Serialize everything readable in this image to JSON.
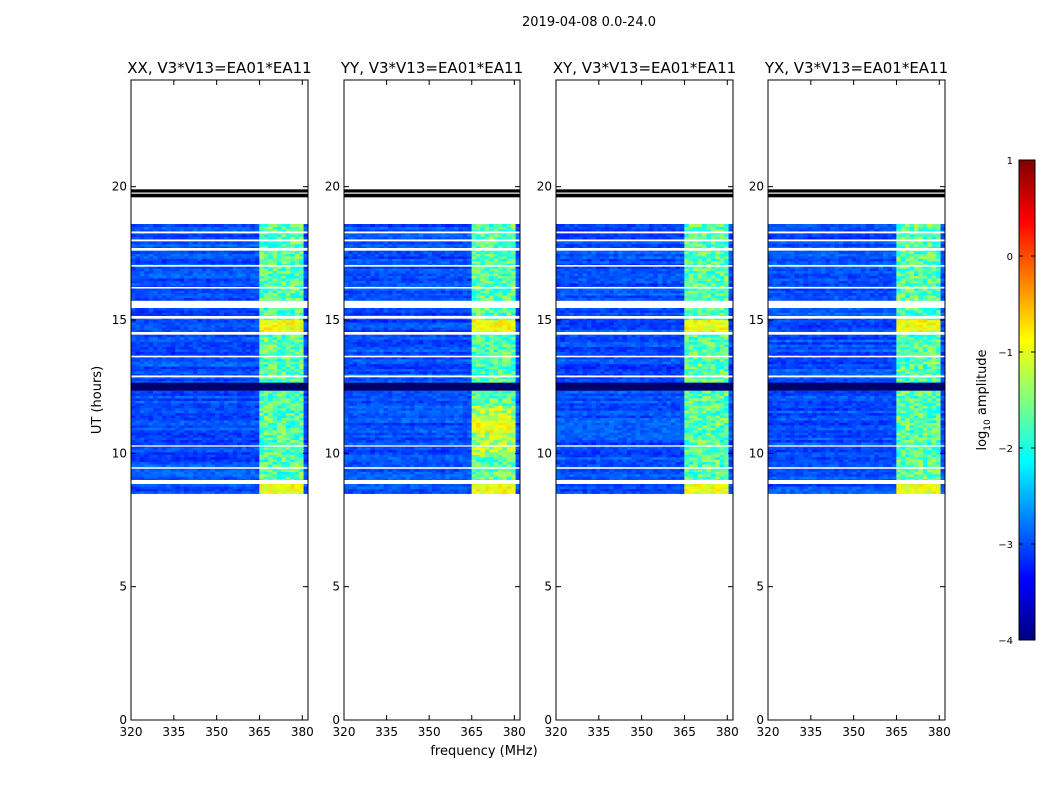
{
  "figure_title": "2019-04-08 0.0-24.0",
  "chart_data": [
    {
      "type": "heatmap",
      "title": "XX, V3*V13=EA01*EA11",
      "polarization": "XX",
      "xlabel": "",
      "ylabel": "UT (hours)",
      "xlim": [
        320,
        382
      ],
      "ylim": [
        0,
        24
      ],
      "xticks": [
        320,
        335,
        350,
        365,
        380
      ],
      "yticks": [
        0,
        5,
        10,
        15,
        20
      ],
      "bright_band_mhz": [
        363.5,
        379.5
      ],
      "data_hours": [
        8.5,
        18.6
      ],
      "strong_rows_hours": [
        8.7,
        14.75
      ]
    },
    {
      "type": "heatmap",
      "title": "YY, V3*V13=EA01*EA11",
      "polarization": "YY",
      "xlabel": "frequency (MHz)",
      "ylabel": "",
      "xlim": [
        320,
        382
      ],
      "ylim": [
        0,
        24
      ],
      "xticks": [
        320,
        335,
        350,
        365,
        380
      ],
      "yticks": [
        0,
        5,
        10,
        15,
        20
      ],
      "bright_band_mhz": [
        363.5,
        379.5
      ],
      "data_hours": [
        8.5,
        18.6
      ],
      "strong_rows_hours": [
        8.7,
        11.0,
        14.75
      ]
    },
    {
      "type": "heatmap",
      "title": "XY, V3*V13=EA01*EA11",
      "polarization": "XY",
      "xlabel": "",
      "ylabel": "",
      "xlim": [
        320,
        382
      ],
      "ylim": [
        0,
        24
      ],
      "xticks": [
        320,
        335,
        350,
        365,
        380
      ],
      "yticks": [
        0,
        5,
        10,
        15,
        20
      ],
      "bright_band_mhz": [
        363.5,
        379.5
      ],
      "data_hours": [
        8.5,
        18.6
      ],
      "strong_rows_hours": [
        8.7,
        14.75
      ]
    },
    {
      "type": "heatmap",
      "title": "YX, V3*V13=EA01*EA11",
      "polarization": "YX",
      "xlabel": "",
      "ylabel": "",
      "xlim": [
        320,
        382
      ],
      "ylim": [
        0,
        24
      ],
      "xticks": [
        320,
        335,
        350,
        365,
        380
      ],
      "yticks": [
        0,
        5,
        10,
        15,
        20
      ],
      "bright_band_mhz": [
        363.5,
        379.5
      ],
      "data_hours": [
        8.5,
        18.6
      ],
      "strong_rows_hours": [
        8.7,
        14.75
      ]
    }
  ],
  "colorbar": {
    "label": "log₁₀ amplitude",
    "label_base": "log",
    "label_sub": "10",
    "label_rest": " amplitude",
    "range": [
      -4,
      1
    ],
    "ticks": [
      1,
      0,
      -1,
      -2,
      -3,
      -4
    ],
    "tick_labels": [
      "1",
      "0",
      "−1",
      "−2",
      "−3",
      "−4"
    ],
    "colormap": "jet",
    "colors": [
      "#00007f",
      "#0000ff",
      "#007fff",
      "#00ffff",
      "#7fff7f",
      "#ffff00",
      "#ff7f00",
      "#ff0000",
      "#7f0000"
    ]
  },
  "white_gap_hours": [
    [
      8.85,
      9.0
    ],
    [
      9.42,
      9.48
    ],
    [
      10.25,
      10.3
    ],
    [
      12.85,
      12.92
    ],
    [
      13.6,
      13.66
    ],
    [
      14.45,
      14.55
    ],
    [
      15.05,
      15.15
    ],
    [
      15.45,
      15.72
    ],
    [
      16.18,
      16.24
    ],
    [
      17.0,
      17.06
    ],
    [
      17.6,
      17.7
    ],
    [
      17.95,
      18.02
    ],
    [
      18.25,
      18.32
    ],
    [
      19.45,
      19.55
    ]
  ],
  "dark_bar_hours": [
    [
      12.35,
      12.65
    ],
    [
      19.6,
      19.9
    ]
  ]
}
